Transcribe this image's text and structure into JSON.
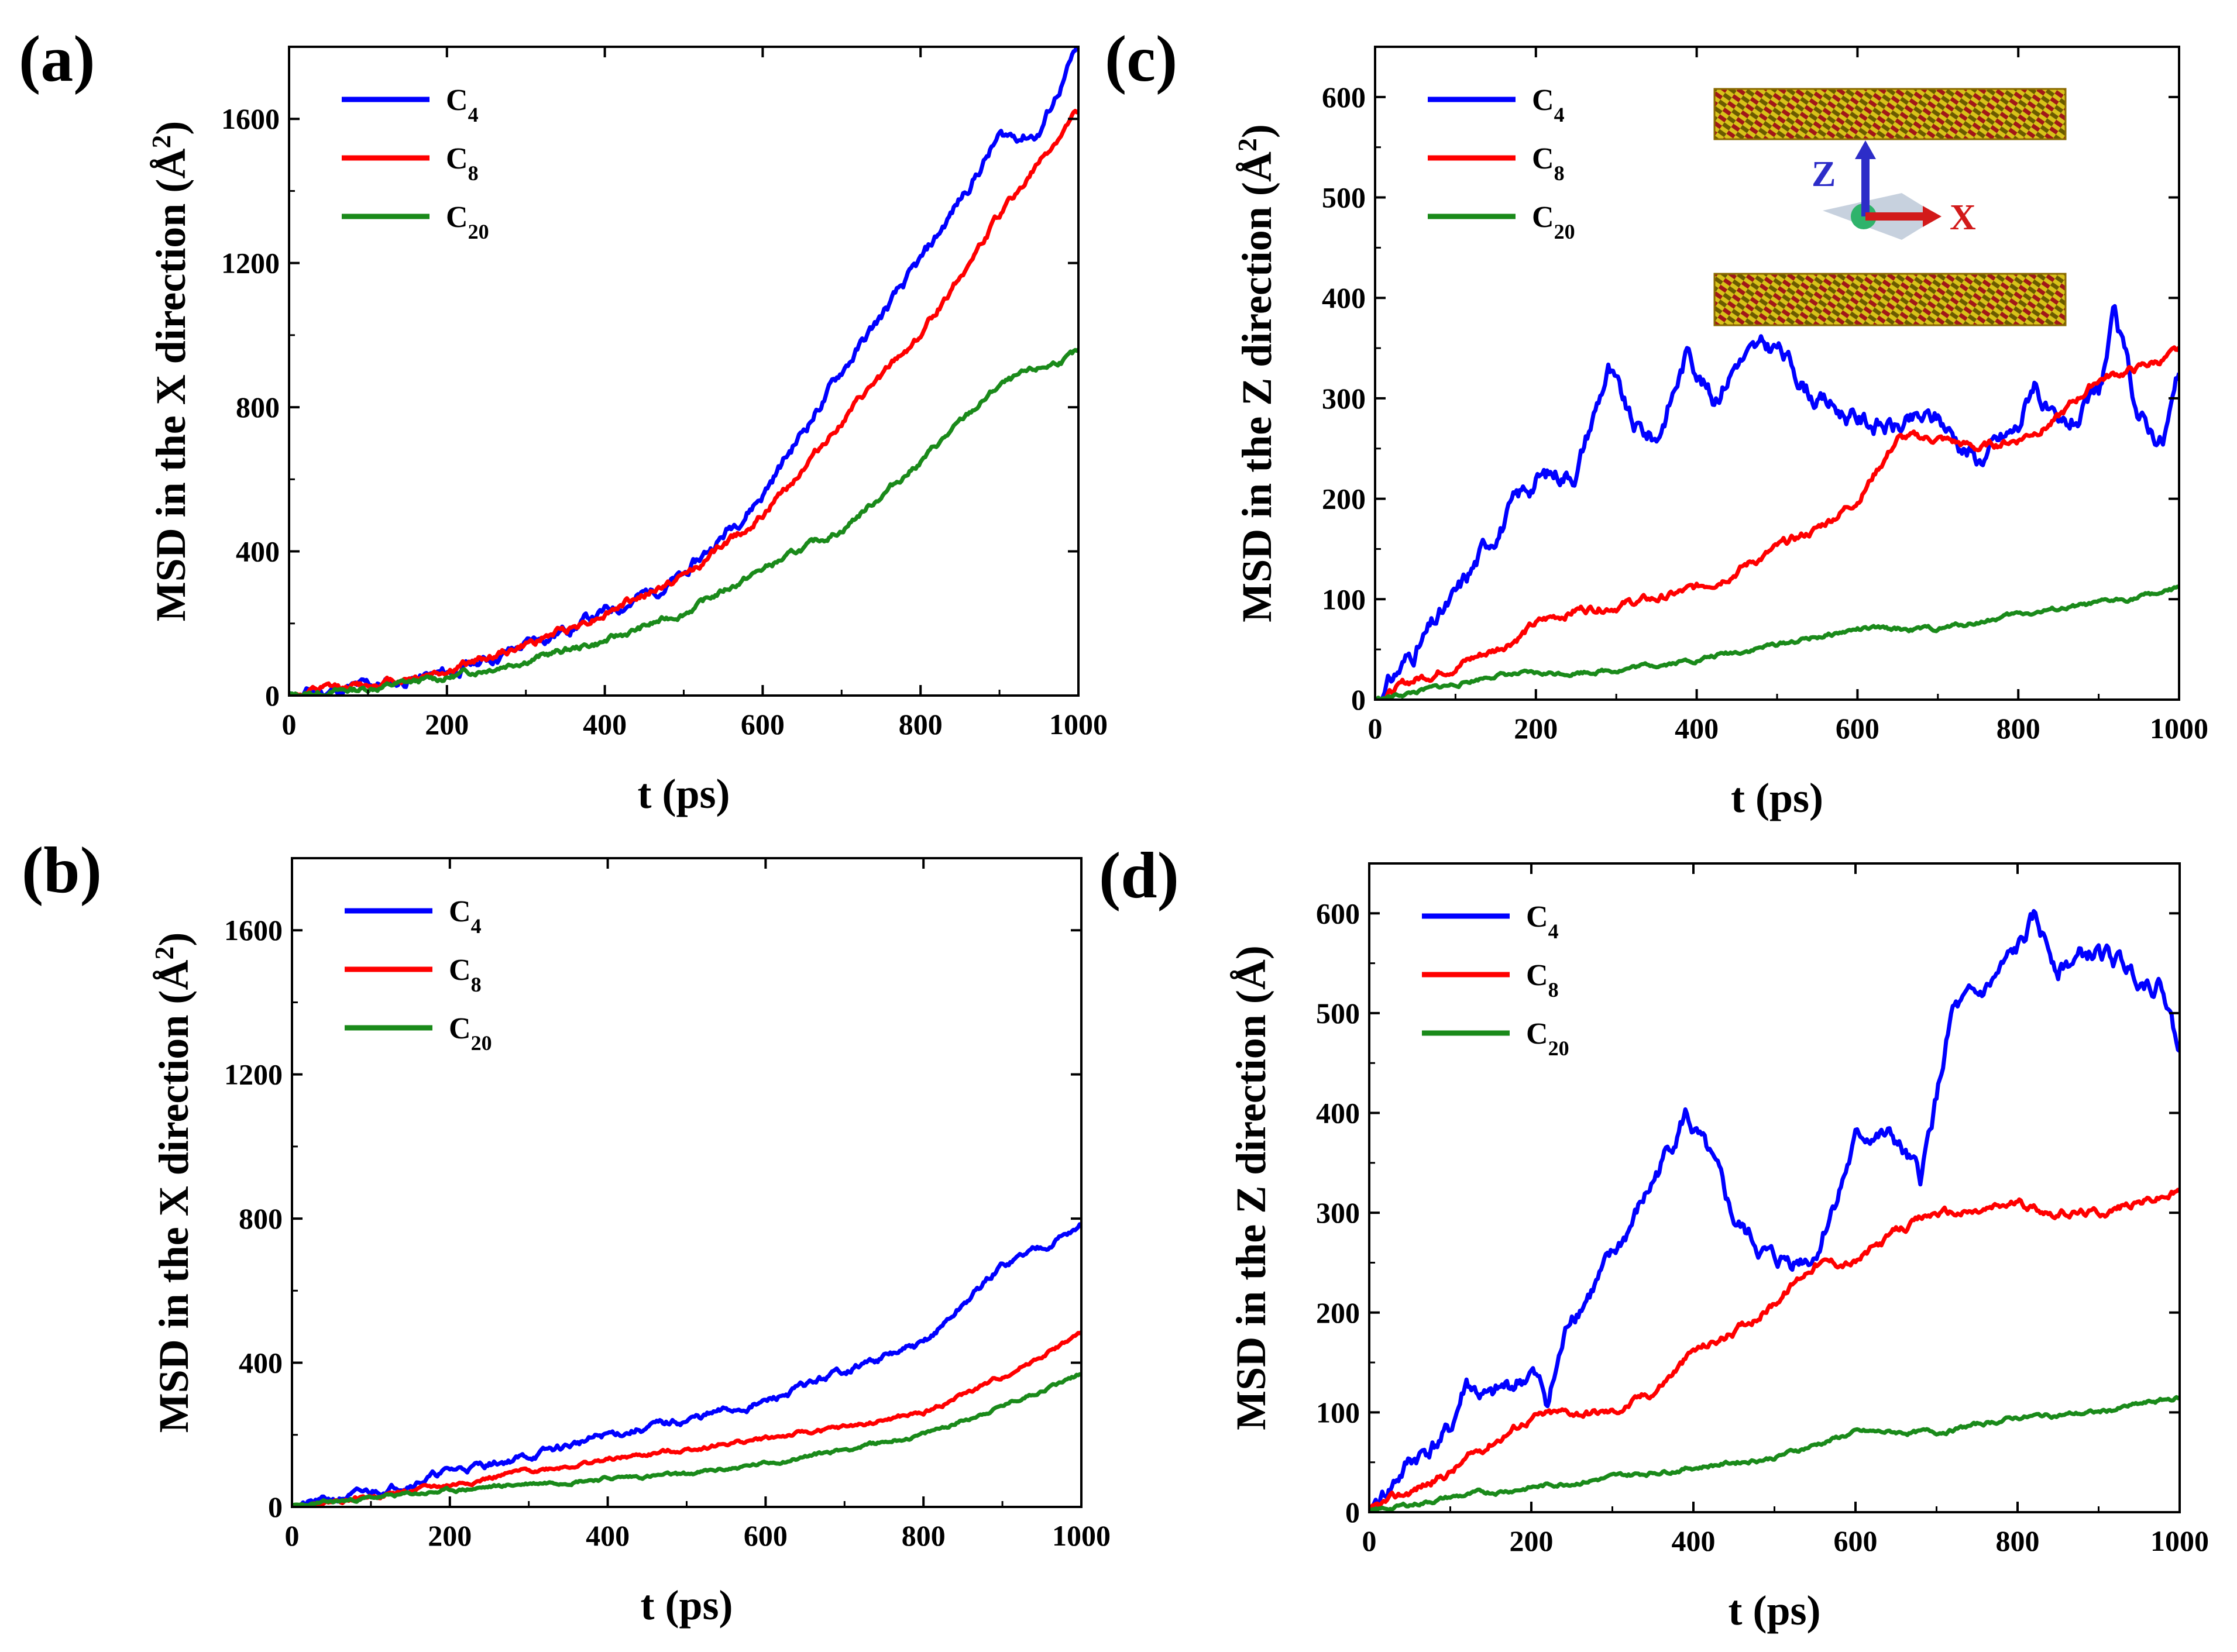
{
  "colors": {
    "C4": "#0000ff",
    "C8": "#ff0000",
    "C20": "#1a8a1a",
    "frame": "#000000"
  },
  "inset": {
    "z_label": "Z",
    "x_label": "X"
  },
  "chart_data": [
    {
      "id": "a",
      "panel_label": "(a)",
      "type": "line",
      "xlabel": "t (ps)",
      "ylabel_main": "MSD in the X direction (",
      "ylabel_unit": "Å",
      "ylabel_sup": "2",
      "ylabel_close": ")",
      "xlim": [
        0,
        1000
      ],
      "ylim": [
        0,
        1800
      ],
      "xticks": [
        0,
        200,
        400,
        600,
        800,
        1000
      ],
      "yticks": [
        0,
        400,
        800,
        1200,
        1600
      ],
      "legend_position": "top-left",
      "inset": false,
      "series": [
        {
          "name": "C4",
          "base": "C",
          "sub": "4",
          "color_key": "C4",
          "x": [
            0,
            100,
            200,
            300,
            400,
            500,
            600,
            700,
            800,
            900,
            950,
            1000
          ],
          "values": [
            0,
            25,
            60,
            140,
            230,
            330,
            560,
            900,
            1200,
            1550,
            1560,
            1800
          ],
          "noise": 22,
          "seed": 11
        },
        {
          "name": "C8",
          "base": "C",
          "sub": "8",
          "color_key": "C8",
          "x": [
            0,
            100,
            200,
            300,
            400,
            500,
            600,
            700,
            800,
            900,
            1000
          ],
          "values": [
            0,
            30,
            70,
            140,
            230,
            330,
            500,
            760,
            1000,
            1330,
            1620
          ],
          "noise": 15,
          "seed": 12
        },
        {
          "name": "C20",
          "base": "C",
          "sub": "20",
          "color_key": "C20",
          "x": [
            0,
            100,
            200,
            300,
            400,
            500,
            600,
            700,
            800,
            900,
            1000
          ],
          "values": [
            0,
            20,
            50,
            100,
            150,
            230,
            350,
            460,
            650,
            860,
            950
          ],
          "noise": 12,
          "seed": 13
        }
      ]
    },
    {
      "id": "b",
      "panel_label": "(b)",
      "type": "line",
      "xlabel": "t (ps)",
      "ylabel_main": "MSD in the X direction (",
      "ylabel_unit": "Å",
      "ylabel_sup": "2",
      "ylabel_close": ")",
      "xlim": [
        0,
        1000
      ],
      "ylim": [
        0,
        1800
      ],
      "xticks": [
        0,
        200,
        400,
        600,
        800,
        1000
      ],
      "yticks": [
        0,
        400,
        800,
        1200,
        1600
      ],
      "legend_position": "top-left",
      "inset": false,
      "series": [
        {
          "name": "C4",
          "base": "C",
          "sub": "4",
          "color_key": "C4",
          "x": [
            0,
            100,
            200,
            300,
            400,
            500,
            600,
            700,
            800,
            900,
            1000
          ],
          "values": [
            0,
            40,
            100,
            140,
            200,
            240,
            290,
            380,
            450,
            670,
            780
          ],
          "noise": 14,
          "seed": 21
        },
        {
          "name": "C8",
          "base": "C",
          "sub": "8",
          "color_key": "C8",
          "x": [
            0,
            100,
            200,
            300,
            400,
            500,
            600,
            700,
            800,
            900,
            1000
          ],
          "values": [
            0,
            30,
            60,
            100,
            130,
            160,
            190,
            220,
            260,
            360,
            480
          ],
          "noise": 8,
          "seed": 22
        },
        {
          "name": "C20",
          "base": "C",
          "sub": "20",
          "color_key": "C20",
          "x": [
            0,
            100,
            200,
            300,
            400,
            500,
            600,
            700,
            800,
            900,
            1000
          ],
          "values": [
            0,
            25,
            45,
            65,
            80,
            90,
            120,
            160,
            200,
            280,
            370
          ],
          "noise": 7,
          "seed": 23
        }
      ]
    },
    {
      "id": "c",
      "panel_label": "(c)",
      "type": "line",
      "xlabel": "t (ps)",
      "ylabel_main": "MSD in the Z direction (",
      "ylabel_unit": "Å",
      "ylabel_sup": "2",
      "ylabel_close": ")",
      "xlim": [
        0,
        1000
      ],
      "ylim": [
        0,
        650
      ],
      "xticks": [
        0,
        200,
        400,
        600,
        800,
        1000
      ],
      "yticks": [
        0,
        100,
        200,
        300,
        400,
        500,
        600
      ],
      "legend_position": "top-left",
      "inset": true,
      "series": [
        {
          "name": "C4",
          "base": "C",
          "sub": "4",
          "color_key": "C4",
          "x": [
            0,
            50,
            100,
            150,
            200,
            250,
            290,
            320,
            350,
            390,
            420,
            450,
            500,
            550,
            600,
            650,
            700,
            750,
            800,
            820,
            850,
            900,
            920,
            950,
            980,
            1000
          ],
          "values": [
            0,
            50,
            100,
            170,
            220,
            230,
            330,
            270,
            260,
            350,
            300,
            340,
            350,
            300,
            280,
            270,
            280,
            240,
            270,
            320,
            260,
            300,
            380,
            280,
            260,
            320
          ],
          "noise": 14,
          "seed": 31
        },
        {
          "name": "C8",
          "base": "C",
          "sub": "8",
          "color_key": "C8",
          "x": [
            0,
            50,
            100,
            150,
            200,
            250,
            300,
            350,
            400,
            450,
            500,
            550,
            600,
            650,
            700,
            750,
            800,
            850,
            900,
            950,
            1000
          ],
          "values": [
            0,
            20,
            35,
            50,
            75,
            90,
            95,
            100,
            110,
            130,
            150,
            170,
            200,
            260,
            260,
            250,
            260,
            280,
            320,
            330,
            345
          ],
          "noise": 6,
          "seed": 32
        },
        {
          "name": "C20",
          "base": "C",
          "sub": "20",
          "color_key": "C20",
          "x": [
            0,
            100,
            150,
            200,
            300,
            400,
            500,
            600,
            700,
            800,
            900,
            1000
          ],
          "values": [
            0,
            15,
            25,
            25,
            30,
            40,
            55,
            70,
            70,
            85,
            95,
            110
          ],
          "noise": 3,
          "seed": 33
        }
      ]
    },
    {
      "id": "d",
      "panel_label": "(d)",
      "type": "line",
      "xlabel": "t (ps)",
      "ylabel_main": "MSD in the Z direction (",
      "ylabel_unit": "Å",
      "ylabel_sup": "",
      "ylabel_close": ")",
      "xlim": [
        0,
        1000
      ],
      "ylim": [
        0,
        650
      ],
      "xticks": [
        0,
        200,
        400,
        600,
        800,
        1000
      ],
      "yticks": [
        0,
        100,
        200,
        300,
        400,
        500,
        600
      ],
      "legend_position": "top-left",
      "inset": false,
      "series": [
        {
          "name": "C4",
          "base": "C",
          "sub": "4",
          "color_key": "C4",
          "x": [
            0,
            50,
            100,
            120,
            150,
            200,
            220,
            250,
            300,
            350,
            390,
            420,
            450,
            500,
            550,
            600,
            620,
            650,
            680,
            720,
            750,
            800,
            820,
            850,
            900,
            950,
            980,
            1000
          ],
          "values": [
            0,
            50,
            80,
            130,
            110,
            140,
            110,
            200,
            250,
            330,
            400,
            350,
            290,
            250,
            260,
            370,
            380,
            370,
            330,
            500,
            510,
            560,
            590,
            550,
            560,
            540,
            530,
            460
          ],
          "noise": 14,
          "seed": 41
        },
        {
          "name": "C8",
          "base": "C",
          "sub": "8",
          "color_key": "C8",
          "x": [
            0,
            50,
            100,
            150,
            200,
            250,
            300,
            350,
            400,
            450,
            500,
            550,
            600,
            650,
            700,
            750,
            800,
            850,
            900,
            950,
            1000
          ],
          "values": [
            0,
            20,
            40,
            70,
            95,
            100,
            100,
            120,
            160,
            180,
            210,
            250,
            250,
            280,
            300,
            300,
            310,
            300,
            300,
            310,
            320
          ],
          "noise": 6,
          "seed": 42
        },
        {
          "name": "C20",
          "base": "C",
          "sub": "20",
          "color_key": "C20",
          "x": [
            0,
            100,
            200,
            300,
            400,
            500,
            600,
            700,
            800,
            900,
            1000
          ],
          "values": [
            0,
            15,
            25,
            35,
            45,
            55,
            80,
            80,
            95,
            100,
            115
          ],
          "noise": 3,
          "seed": 43
        }
      ]
    }
  ]
}
